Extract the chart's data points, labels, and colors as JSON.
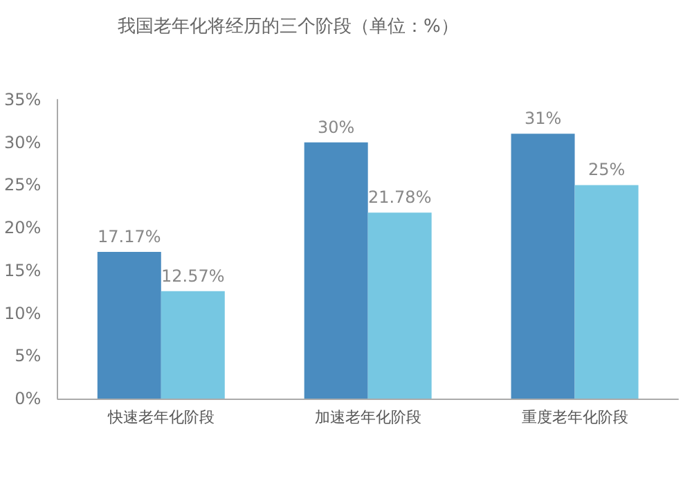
{
  "chart_data": {
    "type": "bar",
    "title": "我国老年化将经历的三个阶段（单位：%）",
    "categories": [
      "快速老年化阶段",
      "加速老年化阶段",
      "重度老年化阶段"
    ],
    "series": [
      {
        "color": "#4a8cc0",
        "values": [
          17.17,
          30,
          31
        ],
        "value_labels": [
          "17.17%",
          "30%",
          "31%"
        ]
      },
      {
        "color": "#76c7e2",
        "values": [
          12.57,
          21.78,
          25
        ],
        "value_labels": [
          "12.57%",
          "21.78%",
          "25%"
        ]
      }
    ],
    "ylim": [
      0,
      35
    ],
    "yticks": [
      {
        "value": 0,
        "label": "0%"
      },
      {
        "value": 5,
        "label": "5%"
      },
      {
        "value": 10,
        "label": "10%"
      },
      {
        "value": 15,
        "label": "15%"
      },
      {
        "value": 20,
        "label": "20%"
      },
      {
        "value": 25,
        "label": "25%"
      },
      {
        "value": 30,
        "label": "30%"
      },
      {
        "value": 35,
        "label": "35%"
      }
    ],
    "grid": false
  }
}
